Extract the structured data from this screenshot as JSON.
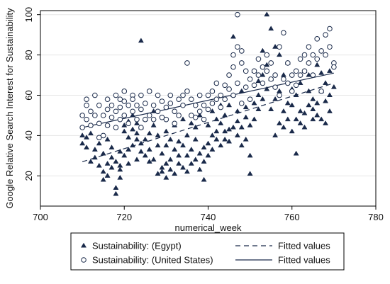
{
  "chart_data": {
    "type": "scatter",
    "xlabel": "numerical_week",
    "ylabel": "Google Relative Search Interest for Sustainability",
    "xlim": [
      700,
      780
    ],
    "ylim": [
      5,
      102
    ],
    "xticks": [
      700,
      720,
      740,
      760,
      780
    ],
    "yticks": [
      20,
      40,
      60,
      80,
      100
    ],
    "grid": true,
    "legend_position": "bottom",
    "series": [
      {
        "name": "Sustainability: (Egypt)",
        "marker": "triangle",
        "color": "#1a2a4a",
        "points": [
          [
            710,
            36
          ],
          [
            710,
            40
          ],
          [
            711,
            34
          ],
          [
            711,
            39
          ],
          [
            712,
            27
          ],
          [
            712,
            41
          ],
          [
            713,
            33
          ],
          [
            713,
            29
          ],
          [
            714,
            25
          ],
          [
            714,
            36
          ],
          [
            715,
            22
          ],
          [
            715,
            18
          ],
          [
            715,
            31
          ],
          [
            716,
            26
          ],
          [
            716,
            38
          ],
          [
            716,
            20
          ],
          [
            717,
            29
          ],
          [
            717,
            24
          ],
          [
            717,
            34
          ],
          [
            718,
            11
          ],
          [
            718,
            14
          ],
          [
            718,
            27
          ],
          [
            719,
            19
          ],
          [
            719,
            23
          ],
          [
            719,
            32
          ],
          [
            719,
            25
          ],
          [
            720,
            42
          ],
          [
            720,
            30
          ],
          [
            720,
            45
          ],
          [
            721,
            47
          ],
          [
            721,
            39
          ],
          [
            721,
            26
          ],
          [
            721,
            33
          ],
          [
            722,
            43
          ],
          [
            722,
            35
          ],
          [
            722,
            50
          ],
          [
            723,
            46
          ],
          [
            723,
            38
          ],
          [
            723,
            28
          ],
          [
            723,
            41
          ],
          [
            724,
            36
          ],
          [
            724,
            44
          ],
          [
            724,
            32
          ],
          [
            724,
            87
          ],
          [
            725,
            30
          ],
          [
            725,
            38
          ],
          [
            725,
            48
          ],
          [
            726,
            41
          ],
          [
            726,
            33
          ],
          [
            726,
            27
          ],
          [
            727,
            45
          ],
          [
            727,
            52
          ],
          [
            727,
            28
          ],
          [
            728,
            21
          ],
          [
            728,
            35
          ],
          [
            728,
            40
          ],
          [
            729,
            22
          ],
          [
            729,
            24
          ],
          [
            729,
            31
          ],
          [
            730,
            19
          ],
          [
            730,
            26
          ],
          [
            730,
            42
          ],
          [
            730,
            35
          ],
          [
            731,
            28
          ],
          [
            731,
            38
          ],
          [
            731,
            23
          ],
          [
            732,
            33
          ],
          [
            732,
            21
          ],
          [
            732,
            45
          ],
          [
            733,
            30
          ],
          [
            733,
            37
          ],
          [
            733,
            26
          ],
          [
            734,
            24
          ],
          [
            734,
            35
          ],
          [
            734,
            48
          ],
          [
            735,
            30
          ],
          [
            735,
            40
          ],
          [
            735,
            22
          ],
          [
            736,
            26
          ],
          [
            736,
            46
          ],
          [
            736,
            33
          ],
          [
            737,
            38
          ],
          [
            737,
            28
          ],
          [
            737,
            44
          ],
          [
            738,
            31
          ],
          [
            738,
            23
          ],
          [
            738,
            50
          ],
          [
            739,
            27
          ],
          [
            739,
            34
          ],
          [
            739,
            18
          ],
          [
            740,
            36
          ],
          [
            740,
            30
          ],
          [
            740,
            45
          ],
          [
            741,
            40
          ],
          [
            741,
            52
          ],
          [
            741,
            33
          ],
          [
            742,
            38
          ],
          [
            742,
            48
          ],
          [
            742,
            42
          ],
          [
            743,
            35
          ],
          [
            743,
            55
          ],
          [
            743,
            46
          ],
          [
            744,
            42
          ],
          [
            744,
            50
          ],
          [
            744,
            38
          ],
          [
            745,
            43
          ],
          [
            745,
            55
          ],
          [
            745,
            37
          ],
          [
            746,
            89
          ],
          [
            746,
            60
          ],
          [
            746,
            44
          ],
          [
            747,
            40
          ],
          [
            747,
            52
          ],
          [
            747,
            47
          ],
          [
            748,
            35
          ],
          [
            748,
            44
          ],
          [
            748,
            62
          ],
          [
            749,
            38
          ],
          [
            749,
            49
          ],
          [
            749,
            54
          ],
          [
            750,
            21
          ],
          [
            750,
            45
          ],
          [
            750,
            30
          ],
          [
            751,
            56
          ],
          [
            751,
            72
          ],
          [
            751,
            48
          ],
          [
            752,
            60
          ],
          [
            752,
            67
          ],
          [
            752,
            53
          ],
          [
            753,
            70
          ],
          [
            753,
            82
          ],
          [
            753,
            58
          ],
          [
            754,
            100
          ],
          [
            754,
            75
          ],
          [
            754,
            63
          ],
          [
            755,
            93
          ],
          [
            755,
            68
          ],
          [
            755,
            53
          ],
          [
            756,
            40
          ],
          [
            756,
            58
          ],
          [
            756,
            84
          ],
          [
            757,
            46
          ],
          [
            757,
            62
          ],
          [
            757,
            80
          ],
          [
            758,
            52
          ],
          [
            758,
            70
          ],
          [
            758,
            44
          ],
          [
            759,
            56
          ],
          [
            759,
            76
          ],
          [
            759,
            48
          ],
          [
            760,
            42
          ],
          [
            760,
            63
          ],
          [
            760,
            55
          ],
          [
            761,
            48
          ],
          [
            761,
            31
          ],
          [
            761,
            60
          ],
          [
            762,
            52
          ],
          [
            762,
            66
          ],
          [
            762,
            46
          ],
          [
            763,
            51
          ],
          [
            763,
            72
          ],
          [
            763,
            44
          ],
          [
            764,
            55
          ],
          [
            764,
            70
          ],
          [
            764,
            62
          ],
          [
            765,
            48
          ],
          [
            765,
            58
          ],
          [
            765,
            53
          ],
          [
            766,
            56
          ],
          [
            766,
            75
          ],
          [
            766,
            50
          ],
          [
            767,
            62
          ],
          [
            767,
            71
          ],
          [
            767,
            48
          ],
          [
            768,
            57
          ],
          [
            768,
            66
          ],
          [
            768,
            46
          ],
          [
            769,
            60
          ],
          [
            769,
            72
          ],
          [
            769,
            52
          ],
          [
            770,
            64
          ]
        ]
      },
      {
        "name": "Sustainability: (United States)",
        "marker": "hollow-circle",
        "color": "#1a2a4a",
        "points": [
          [
            710,
            44
          ],
          [
            710,
            50
          ],
          [
            711,
            48
          ],
          [
            711,
            55
          ],
          [
            711,
            58
          ],
          [
            712,
            52
          ],
          [
            712,
            45
          ],
          [
            713,
            60
          ],
          [
            713,
            50
          ],
          [
            714,
            46
          ],
          [
            714,
            39
          ],
          [
            714,
            55
          ],
          [
            715,
            50
          ],
          [
            715,
            40
          ],
          [
            716,
            45
          ],
          [
            716,
            53
          ],
          [
            716,
            58
          ],
          [
            717,
            55
          ],
          [
            717,
            49
          ],
          [
            718,
            52
          ],
          [
            718,
            44
          ],
          [
            718,
            60
          ],
          [
            719,
            48
          ],
          [
            719,
            54
          ],
          [
            719,
            58
          ],
          [
            720,
            50
          ],
          [
            720,
            62
          ],
          [
            720,
            57
          ],
          [
            721,
            55
          ],
          [
            721,
            46
          ],
          [
            722,
            52
          ],
          [
            722,
            60
          ],
          [
            722,
            58
          ],
          [
            723,
            48
          ],
          [
            723,
            55
          ],
          [
            724,
            53
          ],
          [
            724,
            60
          ],
          [
            724,
            44
          ],
          [
            725,
            56
          ],
          [
            725,
            48
          ],
          [
            726,
            50
          ],
          [
            726,
            62
          ],
          [
            727,
            55
          ],
          [
            727,
            48
          ],
          [
            728,
            60
          ],
          [
            728,
            52
          ],
          [
            729,
            57
          ],
          [
            729,
            49
          ],
          [
            730,
            54
          ],
          [
            730,
            48
          ],
          [
            731,
            56
          ],
          [
            731,
            60
          ],
          [
            732,
            52
          ],
          [
            732,
            46
          ],
          [
            733,
            58
          ],
          [
            733,
            50
          ],
          [
            734,
            55
          ],
          [
            734,
            60
          ],
          [
            735,
            76
          ],
          [
            735,
            62
          ],
          [
            736,
            58
          ],
          [
            736,
            50
          ],
          [
            737,
            55
          ],
          [
            737,
            49
          ],
          [
            738,
            52
          ],
          [
            738,
            60
          ],
          [
            739,
            48
          ],
          [
            739,
            55
          ],
          [
            740,
            60
          ],
          [
            740,
            53
          ],
          [
            741,
            62
          ],
          [
            741,
            56
          ],
          [
            742,
            58
          ],
          [
            742,
            66
          ],
          [
            743,
            60
          ],
          [
            743,
            54
          ],
          [
            744,
            65
          ],
          [
            744,
            58
          ],
          [
            745,
            70
          ],
          [
            745,
            63
          ],
          [
            746,
            80
          ],
          [
            746,
            74
          ],
          [
            746,
            60
          ],
          [
            747,
            100
          ],
          [
            747,
            84
          ],
          [
            747,
            66
          ],
          [
            748,
            82
          ],
          [
            748,
            76
          ],
          [
            748,
            56
          ],
          [
            749,
            72
          ],
          [
            749,
            64
          ],
          [
            750,
            68
          ],
          [
            750,
            58
          ],
          [
            751,
            72
          ],
          [
            751,
            65
          ],
          [
            752,
            78
          ],
          [
            752,
            70
          ],
          [
            753,
            74
          ],
          [
            753,
            66
          ],
          [
            754,
            80
          ],
          [
            754,
            72
          ],
          [
            755,
            76
          ],
          [
            755,
            68
          ],
          [
            756,
            70
          ],
          [
            756,
            64
          ],
          [
            757,
            84
          ],
          [
            757,
            60
          ],
          [
            758,
            91
          ],
          [
            758,
            68
          ],
          [
            759,
            76
          ],
          [
            759,
            66
          ],
          [
            760,
            70
          ],
          [
            760,
            62
          ],
          [
            761,
            72
          ],
          [
            761,
            65
          ],
          [
            762,
            78
          ],
          [
            762,
            70
          ],
          [
            763,
            80
          ],
          [
            763,
            72
          ],
          [
            764,
            84
          ],
          [
            764,
            76
          ],
          [
            765,
            80
          ],
          [
            765,
            70
          ],
          [
            766,
            88
          ],
          [
            766,
            78
          ],
          [
            767,
            82
          ],
          [
            767,
            62
          ],
          [
            768,
            90
          ],
          [
            768,
            80
          ],
          [
            769,
            93
          ],
          [
            769,
            84
          ],
          [
            770,
            76
          ],
          [
            770,
            74
          ]
        ]
      }
    ],
    "fitted_lines": [
      {
        "name": "Fitted values",
        "style": "dashed",
        "color": "#1a2a4a",
        "x": [
          710,
          770
        ],
        "y": [
          27,
          66
        ]
      },
      {
        "name": "Fitted values",
        "style": "solid",
        "color": "#1a2a4a",
        "x": [
          710,
          770
        ],
        "y": [
          44,
          71
        ]
      }
    ],
    "legend": [
      {
        "label": "Sustainability: (Egypt)",
        "marker": "triangle"
      },
      {
        "label": "Fitted values",
        "marker": "dashed-line"
      },
      {
        "label": "Sustainability: (United States)",
        "marker": "hollow-circle"
      },
      {
        "label": "Fitted values",
        "marker": "solid-line"
      }
    ]
  }
}
